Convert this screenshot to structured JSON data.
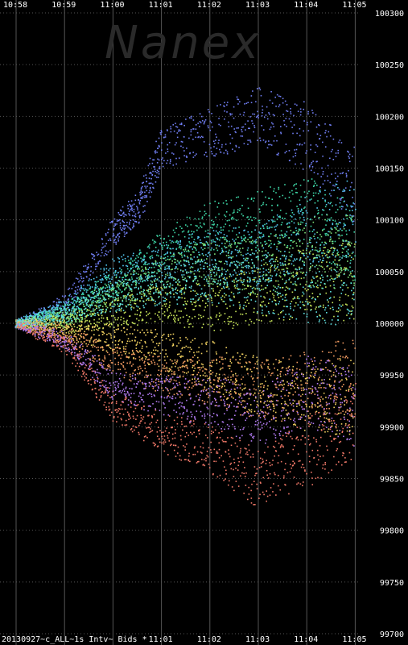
{
  "watermark": "Nanex",
  "caption": "20130927~c_ALL~1s Intv~ Bids *",
  "chart_data": {
    "type": "scatter",
    "title": "",
    "xlabel": "",
    "ylabel": "",
    "x_ticks_top": [
      "10:58",
      "10:59",
      "11:00",
      "11:01",
      "11:02",
      "11:03",
      "11:04",
      "11:05"
    ],
    "x_ticks_bottom": [
      "11:01",
      "11:02",
      "11:03",
      "11:04",
      "11:05"
    ],
    "y_ticks": [
      "100300",
      "100250",
      "100200",
      "100150",
      "100100",
      "100050",
      "100000",
      "99950",
      "99900",
      "99850",
      "99800",
      "99750",
      "99700"
    ],
    "ylim": [
      99700,
      100300
    ],
    "xlim": [
      "10:58",
      "11:05"
    ],
    "grid": true,
    "colors": {
      "background": "#000000",
      "grid": "#555555",
      "series": [
        "#6f7df0",
        "#52c8f0",
        "#3fd9a8",
        "#7ee07a",
        "#c9e65a",
        "#f0d060",
        "#f09a60",
        "#f07868",
        "#b07af0",
        "#5fe0e0"
      ]
    },
    "series": [
      {
        "values": [
          [
            0,
            100000
          ],
          [
            1,
            100020
          ],
          [
            2,
            100090
          ],
          [
            2.5,
            100110
          ],
          [
            3,
            100170
          ],
          [
            4,
            100185
          ],
          [
            5,
            100200
          ],
          [
            6,
            100180
          ],
          [
            7,
            100135
          ]
        ]
      },
      {
        "values": [
          [
            0,
            100000
          ],
          [
            1,
            100015
          ],
          [
            2,
            100050
          ],
          [
            3,
            100060
          ],
          [
            4,
            100070
          ],
          [
            5,
            100065
          ],
          [
            6,
            100090
          ],
          [
            7,
            100105
          ]
        ]
      },
      {
        "values": [
          [
            0,
            100000
          ],
          [
            1,
            100010
          ],
          [
            2,
            100040
          ],
          [
            3,
            100070
          ],
          [
            4,
            100095
          ],
          [
            5,
            100100
          ],
          [
            6,
            100110
          ],
          [
            7,
            100075
          ]
        ]
      },
      {
        "values": [
          [
            0,
            100000
          ],
          [
            1,
            100005
          ],
          [
            2,
            100030
          ],
          [
            3,
            100045
          ],
          [
            4,
            100060
          ],
          [
            5,
            100055
          ],
          [
            6,
            100070
          ],
          [
            7,
            100070
          ]
        ]
      },
      {
        "values": [
          [
            0,
            100000
          ],
          [
            1,
            100000
          ],
          [
            2,
            100010
          ],
          [
            3,
            100020
          ],
          [
            4,
            100015
          ],
          [
            5,
            100030
          ],
          [
            6,
            100040
          ],
          [
            7,
            100040
          ]
        ]
      },
      {
        "values": [
          [
            0,
            100000
          ],
          [
            1,
            99995
          ],
          [
            2,
            99985
          ],
          [
            3,
            99975
          ],
          [
            4,
            99960
          ],
          [
            5,
            99940
          ],
          [
            6,
            99930
          ],
          [
            7,
            99930
          ]
        ]
      },
      {
        "values": [
          [
            0,
            100000
          ],
          [
            1,
            99990
          ],
          [
            2,
            99965
          ],
          [
            3,
            99950
          ],
          [
            4,
            99945
          ],
          [
            5,
            99935
          ],
          [
            6,
            99940
          ],
          [
            7,
            99950
          ]
        ]
      },
      {
        "values": [
          [
            0,
            100000
          ],
          [
            1,
            99980
          ],
          [
            2,
            99920
          ],
          [
            3,
            99895
          ],
          [
            4,
            99880
          ],
          [
            5,
            99850
          ],
          [
            6,
            99875
          ],
          [
            7,
            99910
          ]
        ]
      },
      {
        "values": [
          [
            0,
            100000
          ],
          [
            1,
            99985
          ],
          [
            2,
            99940
          ],
          [
            3,
            99930
          ],
          [
            4,
            99925
          ],
          [
            5,
            99910
          ],
          [
            6,
            99935
          ],
          [
            7,
            99920
          ]
        ]
      },
      {
        "values": [
          [
            0,
            100000
          ],
          [
            1,
            100010
          ],
          [
            2,
            100025
          ],
          [
            3,
            100035
          ],
          [
            4,
            100045
          ],
          [
            5,
            100040
          ],
          [
            6,
            100035
          ],
          [
            7,
            100035
          ]
        ]
      }
    ]
  }
}
